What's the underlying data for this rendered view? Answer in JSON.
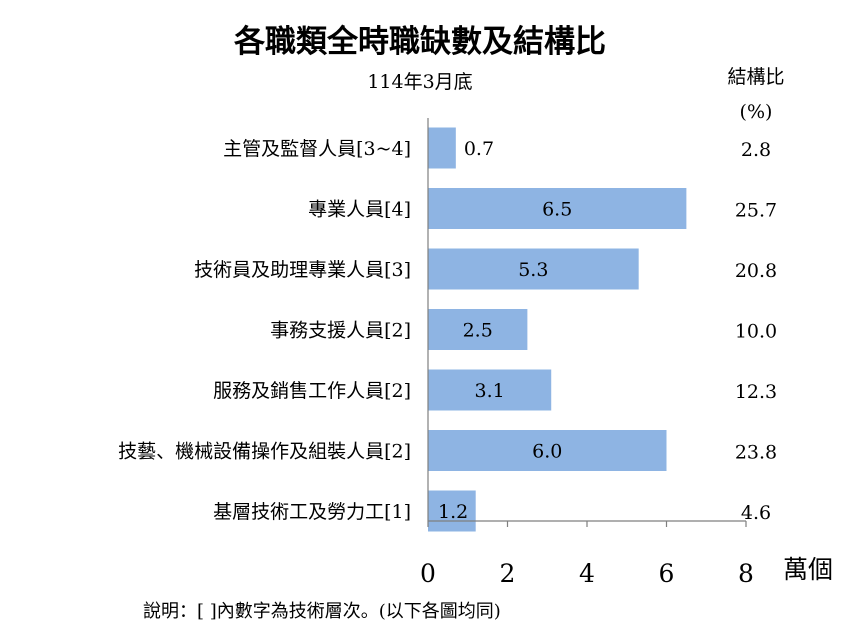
{
  "chart_data": {
    "type": "bar",
    "orientation": "horizontal",
    "title": "各職類全時職缺數及結構比",
    "subtitle": "114年3月底",
    "categories": [
      "主管及監督人員[3~4]",
      "專業人員[4]",
      "技術員及助理專業人員[3]",
      "事務支援人員[2]",
      "服務及銷售工作人員[2]",
      "技藝、機械設備操作及組裝人員[2]",
      "基層技術工及勞力工[1]"
    ],
    "values": [
      0.7,
      6.5,
      5.3,
      2.5,
      3.1,
      6.0,
      1.2
    ],
    "value_labels": [
      "0.7",
      "6.5",
      "5.3",
      "2.5",
      "3.1",
      "6.0",
      "1.2"
    ],
    "structure_ratio_header": [
      "結構比",
      "(%)"
    ],
    "structure_ratio": [
      "2.8",
      "25.7",
      "20.8",
      "10.0",
      "12.3",
      "23.8",
      "4.6"
    ],
    "xlim": [
      0,
      8
    ],
    "xticks": [
      "0",
      "2",
      "4",
      "6",
      "8"
    ],
    "xunit": "萬個",
    "note": "說明：[ ]內數字為技術層次。(以下各圖均同)",
    "bar_color": "#8eb4e3",
    "grid": false
  }
}
